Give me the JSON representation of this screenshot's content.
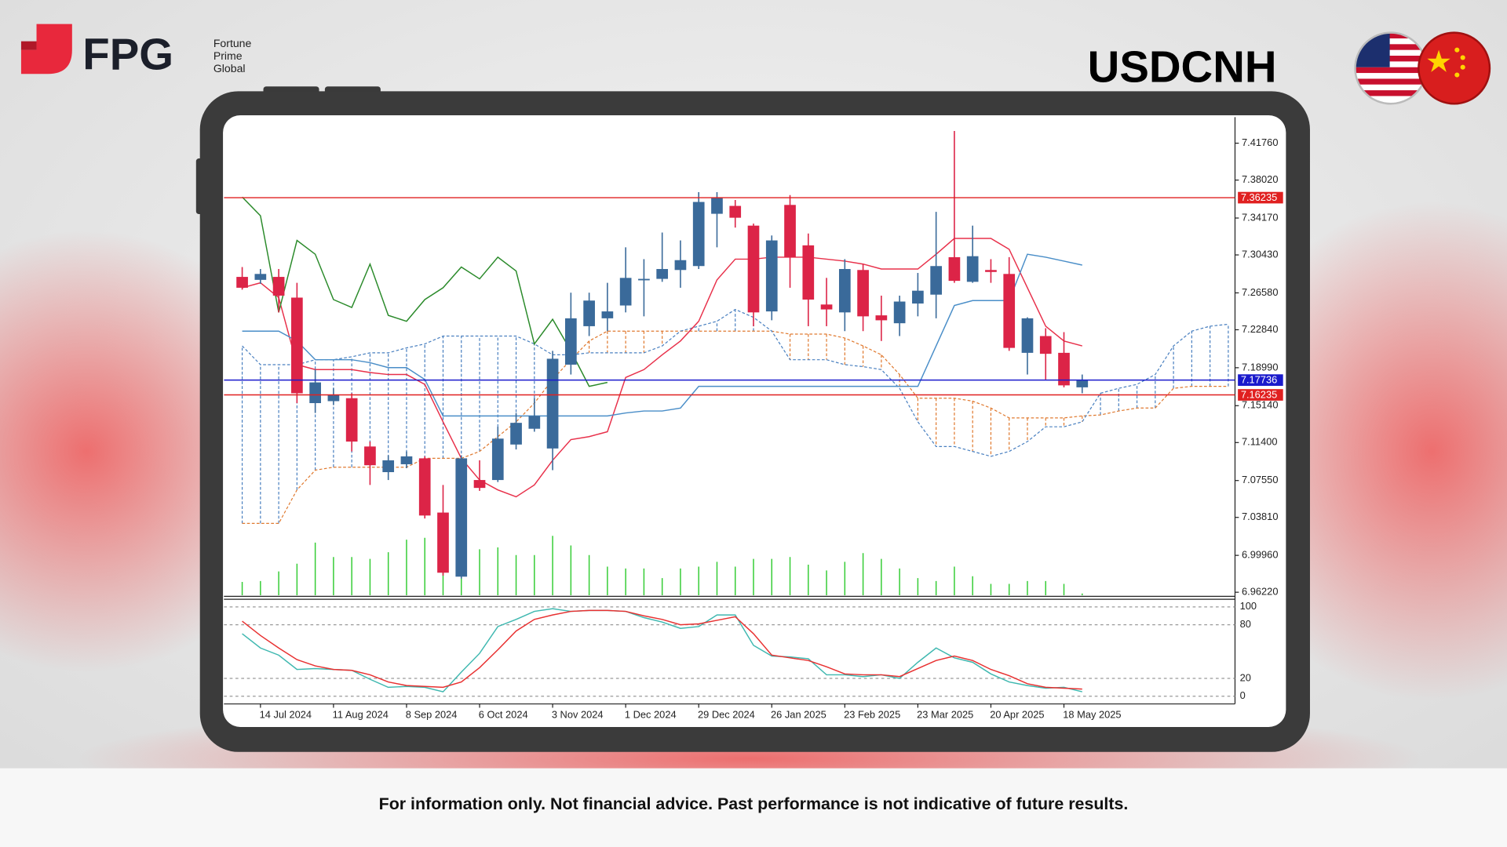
{
  "header": {
    "logo": "FPG",
    "company": [
      "Fortune",
      "Prime",
      "Global"
    ],
    "symbol": "USDCNH"
  },
  "footer": {
    "disclaimer": "For information only. Not financial advice. Past performance is not indicative of future results."
  },
  "chart_data": [
    {
      "type": "candlestick",
      "categories": [
        null,
        "14 Jul 2024",
        null,
        null,
        null,
        "11 Aug 2024",
        null,
        null,
        null,
        "8 Sep 2024",
        null,
        null,
        null,
        "6 Oct 2024",
        null,
        null,
        null,
        "3 Nov 2024",
        null,
        null,
        null,
        "1 Dec 2024",
        null,
        null,
        null,
        "29 Dec 2024",
        null,
        null,
        null,
        "26 Jan 2025",
        null,
        null,
        null,
        "23 Feb 2025",
        null,
        null,
        null,
        "23 Mar 2025",
        null,
        null,
        null,
        "20 Apr 2025",
        null,
        null,
        null,
        "18 May 2025",
        null,
        null,
        null,
        null,
        null,
        null,
        null,
        null,
        null
      ],
      "open": [
        7.282,
        7.279,
        7.282,
        7.261,
        7.154,
        7.156,
        7.159,
        7.11,
        7.084,
        7.092,
        7.098,
        7.043,
        6.978,
        7.076,
        7.076,
        7.112,
        7.128,
        7.108,
        7.193,
        7.232,
        7.24,
        7.253,
        7.279,
        7.28,
        7.289,
        7.293,
        7.346,
        7.354,
        7.334,
        7.247,
        7.355,
        7.314,
        7.254,
        7.246,
        7.289,
        7.243,
        7.235,
        7.255,
        7.264,
        7.302,
        7.277,
        7.289,
        7.285,
        7.205,
        7.222,
        7.205,
        7.17,
        null,
        null,
        null,
        null,
        null,
        null,
        null,
        null
      ],
      "high": [
        7.292,
        7.29,
        7.29,
        7.276,
        7.188,
        7.169,
        7.164,
        7.115,
        7.101,
        7.105,
        7.1,
        7.071,
        7.101,
        7.096,
        7.13,
        7.144,
        7.159,
        7.207,
        7.266,
        7.266,
        7.276,
        7.312,
        7.3,
        7.327,
        7.319,
        7.368,
        7.368,
        7.36,
        7.336,
        7.324,
        7.365,
        7.326,
        7.281,
        7.3,
        7.295,
        7.263,
        7.263,
        7.286,
        7.348,
        7.43,
        7.334,
        7.3,
        7.302,
        7.241,
        7.23,
        7.226,
        7.183,
        null,
        null,
        null,
        null,
        null,
        null,
        null,
        null
      ],
      "low": [
        7.269,
        7.275,
        7.246,
        7.154,
        7.144,
        7.152,
        7.105,
        7.071,
        7.076,
        7.088,
        7.037,
        6.979,
        6.976,
        7.065,
        7.074,
        7.107,
        7.125,
        7.086,
        7.183,
        7.222,
        7.227,
        7.246,
        7.242,
        7.277,
        7.271,
        7.29,
        7.312,
        7.332,
        7.232,
        7.238,
        7.271,
        7.232,
        7.232,
        7.227,
        7.227,
        7.217,
        7.222,
        7.242,
        7.24,
        7.276,
        7.276,
        7.276,
        7.207,
        7.183,
        7.178,
        7.17,
        7.164,
        null,
        null,
        null,
        null,
        null,
        null,
        null,
        null
      ],
      "close": [
        7.271,
        7.285,
        7.263,
        7.164,
        7.175,
        7.162,
        7.115,
        7.091,
        7.096,
        7.1,
        7.04,
        6.982,
        7.098,
        7.068,
        7.118,
        7.134,
        7.141,
        7.199,
        7.24,
        7.258,
        7.247,
        7.281,
        7.28,
        7.29,
        7.299,
        7.358,
        7.362,
        7.342,
        7.246,
        7.319,
        7.302,
        7.259,
        7.249,
        7.29,
        7.242,
        7.238,
        7.257,
        7.268,
        7.293,
        7.278,
        7.303,
        7.287,
        7.21,
        7.24,
        7.204,
        7.172,
        7.177,
        null,
        null,
        null,
        null,
        null,
        null,
        null,
        null
      ],
      "up_color": "#3a6a9a",
      "down_color": "#dc2447",
      "ylim": [
        6.959,
        7.444
      ],
      "yticks": [
        {
          "value": 7.4176,
          "label": "7.41760"
        },
        {
          "value": 7.3802,
          "label": "7.38020"
        },
        {
          "value": 7.3417,
          "label": "7.34170"
        },
        {
          "value": 7.3043,
          "label": "7.30430"
        },
        {
          "value": 7.2658,
          "label": "7.26580"
        },
        {
          "value": 7.2284,
          "label": "7.22840"
        },
        {
          "value": 7.1899,
          "label": "7.18990"
        },
        {
          "value": 7.1514,
          "label": "7.15140"
        },
        {
          "value": 7.114,
          "label": "7.11400"
        },
        {
          "value": 7.0755,
          "label": "7.07550"
        },
        {
          "value": 7.0381,
          "label": "7.03810"
        },
        {
          "value": 6.9996,
          "label": "6.99960"
        },
        {
          "value": 6.9622,
          "label": "6.96220"
        }
      ],
      "levels": [
        {
          "value": 7.36235,
          "color": "#e02020"
        },
        {
          "value": 7.17736,
          "color": "#1a1acc"
        },
        {
          "value": 7.16235,
          "color": "#e02020"
        }
      ],
      "lines": [
        {
          "color": "#e8304a",
          "values": [
            7.271,
            7.276,
            7.261,
            7.193,
            7.188,
            7.188,
            7.188,
            7.185,
            7.183,
            7.183,
            7.173,
            7.135,
            7.098,
            7.076,
            7.066,
            7.059,
            7.071,
            7.096,
            7.117,
            7.12,
            7.125,
            7.18,
            7.188,
            7.203,
            7.217,
            7.237,
            7.279,
            7.3,
            7.3,
            7.302,
            7.302,
            7.302,
            7.3,
            7.298,
            7.295,
            7.29,
            7.29,
            7.29,
            7.305,
            7.321,
            7.321,
            7.321,
            7.31,
            7.271,
            7.232,
            7.217,
            7.212,
            null,
            null,
            null,
            null,
            null,
            null,
            null,
            null
          ]
        },
        {
          "color": "#4a8ec8",
          "values": [
            7.227,
            7.227,
            7.227,
            7.217,
            7.198,
            7.198,
            7.198,
            7.195,
            7.19,
            7.19,
            7.178,
            7.141,
            7.141,
            7.141,
            7.141,
            7.141,
            7.141,
            7.141,
            7.141,
            7.141,
            7.141,
            7.144,
            7.146,
            7.146,
            7.149,
            7.171,
            7.171,
            7.171,
            7.171,
            7.171,
            7.171,
            7.171,
            7.171,
            7.171,
            7.171,
            7.171,
            7.171,
            7.171,
            7.212,
            7.253,
            7.258,
            7.258,
            7.258,
            7.305,
            7.302,
            7.298,
            7.294,
            null,
            null,
            null,
            null,
            null,
            null,
            null,
            null
          ]
        },
        {
          "color": "#2a8a2a",
          "values": [
            7.363,
            7.344,
            7.246,
            7.319,
            7.305,
            7.259,
            7.251,
            7.295,
            7.243,
            7.237,
            7.259,
            7.271,
            7.292,
            7.28,
            7.302,
            7.288,
            7.214,
            7.239,
            7.207,
            7.171,
            7.175,
            null,
            null,
            null,
            null,
            null,
            null,
            null,
            null,
            null,
            null,
            null,
            null,
            null,
            null,
            null,
            null,
            null,
            null,
            null,
            null,
            null,
            null,
            null,
            null,
            null,
            null,
            null,
            null,
            null,
            null,
            null,
            null,
            null,
            null
          ]
        }
      ],
      "cloud": [
        {
          "color": "#e07a30",
          "values": [
            7.032,
            7.032,
            7.032,
            7.066,
            7.086,
            7.089,
            7.089,
            7.089,
            7.089,
            7.089,
            7.098,
            7.098,
            7.098,
            7.105,
            7.12,
            7.135,
            7.154,
            7.178,
            7.198,
            7.217,
            7.227,
            7.227,
            7.227,
            7.227,
            7.227,
            7.227,
            7.227,
            7.227,
            7.227,
            7.227,
            7.224,
            7.224,
            7.224,
            7.22,
            7.212,
            7.203,
            7.183,
            7.159,
            7.159,
            7.159,
            7.156,
            7.149,
            7.139,
            7.139,
            7.139,
            7.139,
            7.141,
            7.142,
            7.146,
            7.149,
            7.149,
            7.169,
            7.171,
            7.171,
            7.171
          ]
        },
        {
          "color": "#4a80c0",
          "values": [
            7.212,
            7.193,
            7.193,
            7.193,
            7.198,
            7.198,
            7.201,
            7.205,
            7.205,
            7.21,
            7.214,
            7.222,
            7.222,
            7.222,
            7.222,
            7.222,
            7.214,
            7.203,
            7.203,
            7.205,
            7.205,
            7.205,
            7.205,
            7.212,
            7.227,
            7.232,
            7.237,
            7.249,
            7.241,
            7.227,
            7.198,
            7.198,
            7.198,
            7.193,
            7.191,
            7.188,
            7.169,
            7.135,
            7.11,
            7.11,
            7.105,
            7.1,
            7.105,
            7.115,
            7.13,
            7.13,
            7.135,
            7.164,
            7.169,
            7.173,
            7.183,
            7.212,
            7.227,
            7.232,
            7.234
          ]
        }
      ],
      "volume": {
        "color": "#33cc33",
        "values": [
          14,
          15,
          25,
          33,
          55,
          40,
          40,
          38,
          45,
          58,
          60,
          55,
          62,
          48,
          50,
          42,
          42,
          62,
          52,
          42,
          30,
          28,
          28,
          18,
          28,
          30,
          35,
          30,
          38,
          38,
          40,
          32,
          26,
          35,
          44,
          38,
          28,
          18,
          15,
          30,
          20,
          12,
          12,
          15,
          15,
          12,
          2,
          null,
          null,
          null,
          null,
          null,
          null,
          null,
          null
        ]
      }
    },
    {
      "type": "line",
      "ylim": [
        -7.5,
        107.5
      ],
      "yticks": [
        100,
        80,
        20,
        0
      ],
      "series": [
        {
          "color": "#3fb8b0",
          "values": [
            70,
            54,
            46,
            30,
            31,
            30,
            29,
            19,
            10,
            11,
            10,
            5,
            27,
            48,
            78,
            86,
            95,
            98,
            95,
            96,
            96,
            95,
            88,
            83,
            76,
            78,
            91,
            91,
            57,
            45,
            44,
            42,
            24,
            24,
            22,
            24,
            20,
            38,
            54,
            43,
            38,
            25,
            16,
            12,
            9,
            10,
            5,
            null,
            null,
            null,
            null,
            null,
            null,
            null,
            null
          ]
        },
        {
          "color": "#e83030",
          "values": [
            84,
            68,
            54,
            41,
            34,
            30,
            29,
            24,
            16,
            12,
            11,
            10,
            16,
            32,
            52,
            73,
            86,
            91,
            95,
            96,
            96,
            95,
            90,
            86,
            80,
            81,
            85,
            89,
            70,
            46,
            43,
            40,
            33,
            25,
            24,
            24,
            22,
            31,
            40,
            45,
            40,
            30,
            23,
            14,
            10,
            9,
            8,
            null,
            null,
            null,
            null,
            null,
            null,
            null,
            null
          ]
        }
      ]
    }
  ]
}
